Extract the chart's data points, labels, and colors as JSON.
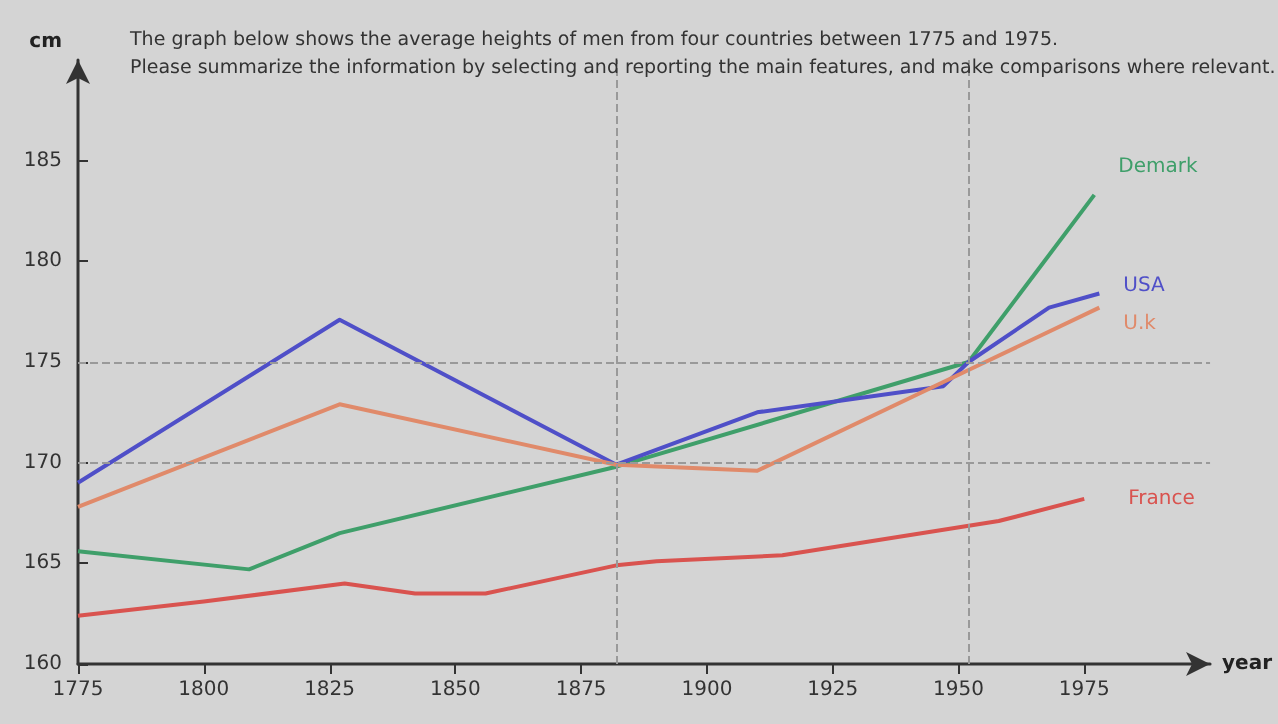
{
  "chart_data": {
    "type": "line",
    "title": "The graph below shows the average heights of men from four countries between 1775 and 1975.",
    "subtitle": "Please summarize the information by selecting and reporting the main features, and make comparisons where relevant.",
    "xlabel": "year",
    "ylabel": "cm",
    "xlim": [
      1775,
      2000
    ],
    "xticks": [
      1775,
      1800,
      1825,
      1850,
      1875,
      1900,
      1925,
      1950,
      1975
    ],
    "ylim": [
      160,
      190
    ],
    "yticks": [
      160,
      165,
      170,
      175,
      180,
      185
    ],
    "grid": false,
    "legend": false,
    "marker": "none",
    "line_style": "solid",
    "series": [
      {
        "name": "Demark",
        "color": "#3f9f6a",
        "x": [
          1775,
          1809,
          1827,
          1882,
          1952,
          1977
        ],
        "values": [
          165.6,
          164.7,
          166.5,
          169.8,
          175,
          183.3
        ]
      },
      {
        "name": "USA",
        "color": "#4f4fc8",
        "x": [
          1775,
          1827,
          1882,
          1910,
          1947,
          1952,
          1968,
          1978
        ],
        "values": [
          169,
          177.1,
          169.9,
          172.5,
          173.8,
          175,
          177.7,
          178.4
        ]
      },
      {
        "name": "U.k",
        "color": "#e08a6a",
        "x": [
          1775,
          1827,
          1882,
          1910,
          1952,
          1978
        ],
        "values": [
          167.8,
          172.9,
          169.9,
          169.6,
          174.6,
          177.7
        ]
      },
      {
        "name": "France",
        "color": "#d9534f",
        "x": [
          1775,
          1800,
          1828,
          1842,
          1856,
          1882,
          1890,
          1915,
          1958,
          1975
        ],
        "values": [
          162.4,
          163.1,
          164,
          163.5,
          163.5,
          164.9,
          165.1,
          165.4,
          167.1,
          168.2
        ]
      }
    ],
    "ref_lines": [
      {
        "axis": "y",
        "value": 175,
        "line_style": "dashed",
        "color": "#999999"
      },
      {
        "axis": "y",
        "value": 170,
        "line_style": "dashed",
        "color": "#999999"
      },
      {
        "axis": "x",
        "value": 1882,
        "line_style": "dashed",
        "color": "#999999"
      },
      {
        "axis": "x",
        "value": 1952,
        "line_style": "dashed",
        "color": "#999999"
      }
    ]
  }
}
